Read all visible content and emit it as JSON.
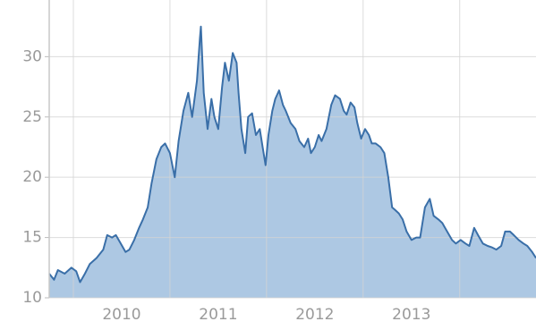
{
  "chart_data": {
    "type": "area",
    "x": [
      2009.75,
      2009.8,
      2009.84,
      2009.91,
      2009.98,
      2010.03,
      2010.07,
      2010.12,
      2010.17,
      2010.24,
      2010.31,
      2010.35,
      2010.4,
      2010.44,
      2010.49,
      2010.54,
      2010.58,
      2010.63,
      2010.68,
      2010.72,
      2010.77,
      2010.81,
      2010.86,
      2010.91,
      2010.95,
      2011.0,
      2011.05,
      2011.09,
      2011.14,
      2011.19,
      2011.23,
      2011.28,
      2011.31,
      2011.32,
      2011.35,
      2011.39,
      2011.43,
      2011.46,
      2011.5,
      2011.54,
      2011.57,
      2011.61,
      2011.65,
      2011.69,
      2011.71,
      2011.74,
      2011.78,
      2011.81,
      2011.85,
      2011.89,
      2011.93,
      2011.96,
      2011.99,
      2012.02,
      2012.06,
      2012.09,
      2012.13,
      2012.17,
      2012.2,
      2012.25,
      2012.3,
      2012.34,
      2012.39,
      2012.43,
      2012.46,
      2012.5,
      2012.54,
      2012.57,
      2012.62,
      2012.67,
      2012.71,
      2012.76,
      2012.8,
      2012.83,
      2012.87,
      2012.91,
      2012.94,
      2012.98,
      2013.02,
      2013.06,
      2013.09,
      2013.13,
      2013.18,
      2013.22,
      2013.26,
      2013.3,
      2013.33,
      2013.37,
      2013.41,
      2013.45,
      2013.5,
      2013.55,
      2013.59,
      2013.64,
      2013.69,
      2013.73,
      2013.78,
      2013.82,
      2013.87,
      2013.92,
      2013.96,
      2014.01,
      2014.06,
      2014.1,
      2014.15,
      2014.19,
      2014.24,
      2014.29,
      2014.33,
      2014.38,
      2014.43,
      2014.47,
      2014.52,
      2014.56,
      2014.61,
      2014.66,
      2014.7,
      2014.75,
      2014.79
    ],
    "values": [
      12,
      11.5,
      12.3,
      12.0,
      12.5,
      12.2,
      11.3,
      12.0,
      12.8,
      13.3,
      14.0,
      15.2,
      15.0,
      15.2,
      14.5,
      13.8,
      14.0,
      14.8,
      15.8,
      16.5,
      17.5,
      19.5,
      21.5,
      22.5,
      22.8,
      22,
      20,
      23,
      25.5,
      27,
      25,
      28,
      31.5,
      32.5,
      27,
      24,
      26.5,
      25,
      24,
      27.5,
      29.5,
      28,
      30.3,
      29.5,
      27,
      24,
      22,
      25,
      25.3,
      23.5,
      24,
      22.5,
      21,
      23.5,
      25.5,
      26.5,
      27.2,
      26,
      25.5,
      24.5,
      24,
      23,
      22.5,
      23.2,
      22,
      22.5,
      23.5,
      23,
      24,
      26,
      26.8,
      26.5,
      25.5,
      25.2,
      26.2,
      25.8,
      24.5,
      23.2,
      24,
      23.5,
      22.8,
      22.8,
      22.5,
      22,
      20,
      17.5,
      17.3,
      17.0,
      16.5,
      15.5,
      14.8,
      15.0,
      15.0,
      17.5,
      18.2,
      16.8,
      16.5,
      16.2,
      15.5,
      14.8,
      14.5,
      14.8,
      14.5,
      14.3,
      15.8,
      15.2,
      14.5,
      14.3,
      14.2,
      14.0,
      14.3,
      15.5,
      15.5,
      15.2,
      14.8,
      14.5,
      14.3,
      13.8,
      13.3
    ],
    "color": "#3a6fa8",
    "fill_color": "#adc8e3",
    "xlim": [
      2009.75,
      2014.79
    ],
    "xticks": [
      {
        "value": 2010.5,
        "label": "2010"
      },
      {
        "value": 2011.5,
        "label": "2011"
      },
      {
        "value": 2012.5,
        "label": "2012"
      },
      {
        "value": 2013.5,
        "label": "2013"
      }
    ],
    "xgrid": [
      2010,
      2011,
      2012,
      2013,
      2014
    ],
    "ylim": [
      10,
      34.7
    ],
    "yticks": [
      10,
      15,
      20,
      25,
      30
    ],
    "grid": true
  }
}
